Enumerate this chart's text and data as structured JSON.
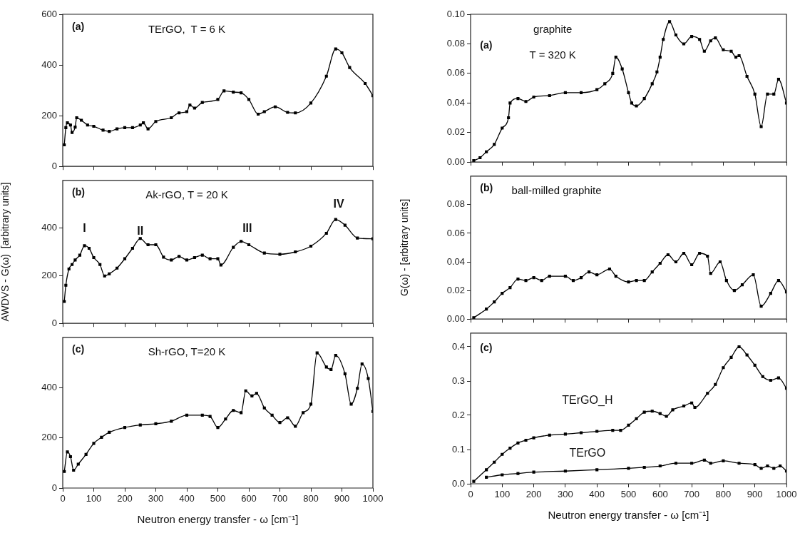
{
  "chart_data": [
    {
      "type": "line",
      "title": "TErGO,  T = 6 K",
      "annotations": [
        "(a)"
      ],
      "color": "#000000",
      "marker": "square",
      "tick_labels": "y",
      "xlim": [
        0,
        1000
      ],
      "xticks": [
        0,
        100,
        200,
        300,
        400,
        500,
        600,
        700,
        800,
        900,
        1000
      ],
      "ylim": [
        0,
        600
      ],
      "yticks": [
        0,
        200,
        400,
        600
      ],
      "x": [
        5,
        10,
        15,
        25,
        30,
        40,
        45,
        60,
        80,
        100,
        130,
        150,
        175,
        200,
        225,
        250,
        260,
        275,
        300,
        350,
        375,
        400,
        410,
        425,
        450,
        500,
        520,
        550,
        575,
        600,
        630,
        650,
        685,
        725,
        750,
        800,
        850,
        880,
        900,
        925,
        975,
        1000
      ],
      "values": [
        85,
        153,
        172,
        163,
        134,
        155,
        192,
        182,
        163,
        158,
        143,
        138,
        148,
        153,
        153,
        163,
        172,
        148,
        177,
        192,
        211,
        216,
        242,
        230,
        252,
        264,
        298,
        293,
        290,
        264,
        206,
        216,
        235,
        213,
        211,
        250,
        356,
        463,
        448,
        390,
        327,
        279
      ]
    },
    {
      "type": "line",
      "title": "Ak-rGO, T = 20 K",
      "ylabel": "AWDVS - G(ω)  [arbitrary units]",
      "annotations": [
        "(b)",
        "I",
        "II",
        "III",
        "IV"
      ],
      "color": "#000000",
      "marker": "square",
      "tick_labels": "y",
      "xlim": [
        0,
        1000
      ],
      "xticks": [
        0,
        100,
        200,
        300,
        400,
        500,
        600,
        700,
        800,
        900,
        1000
      ],
      "ylim": [
        0,
        600
      ],
      "yticks": [
        0,
        200,
        400
      ],
      "x": [
        5,
        10,
        20,
        30,
        40,
        55,
        70,
        85,
        100,
        120,
        135,
        150,
        175,
        200,
        225,
        250,
        275,
        300,
        325,
        350,
        375,
        400,
        425,
        450,
        475,
        500,
        510,
        550,
        575,
        600,
        650,
        700,
        750,
        800,
        850,
        880,
        910,
        950,
        1000
      ],
      "values": [
        92,
        160,
        228,
        247,
        266,
        286,
        326,
        315,
        276,
        247,
        199,
        208,
        232,
        271,
        315,
        356,
        330,
        330,
        278,
        266,
        281,
        266,
        276,
        286,
        271,
        271,
        245,
        319,
        344,
        330,
        295,
        290,
        300,
        324,
        378,
        436,
        412,
        358,
        355
      ]
    },
    {
      "type": "line",
      "title": "Sh-rGO, T=20 K",
      "xlabel": "Neutron energy transfer - ω [cm⁻¹]",
      "annotations": [
        "(c)"
      ],
      "color": "#000000",
      "marker": "square",
      "xlim": [
        0,
        1000
      ],
      "xticks": [
        0,
        100,
        200,
        300,
        400,
        500,
        600,
        700,
        800,
        900,
        1000
      ],
      "ylim": [
        0,
        600
      ],
      "yticks": [
        0,
        200,
        400
      ],
      "x": [
        5,
        15,
        25,
        35,
        50,
        75,
        100,
        125,
        150,
        200,
        250,
        300,
        350,
        400,
        450,
        475,
        500,
        525,
        550,
        575,
        590,
        610,
        625,
        650,
        675,
        700,
        725,
        750,
        775,
        800,
        820,
        850,
        865,
        880,
        910,
        930,
        950,
        965,
        985,
        1000
      ],
      "values": [
        66,
        144,
        125,
        71,
        95,
        134,
        178,
        202,
        222,
        241,
        251,
        256,
        266,
        290,
        290,
        285,
        241,
        275,
        309,
        300,
        387,
        367,
        377,
        319,
        290,
        261,
        280,
        246,
        300,
        334,
        538,
        482,
        472,
        528,
        455,
        334,
        397,
        494,
        436,
        305
      ]
    },
    {
      "type": "line",
      "title": "graphite",
      "subtitle": "T = 320 K",
      "annotations": [
        "(a)"
      ],
      "color": "#000000",
      "marker": "square",
      "tick_labels": "y",
      "xlim": [
        0,
        1000
      ],
      "xticks": [
        0,
        100,
        200,
        300,
        400,
        500,
        600,
        700,
        800,
        900,
        1000
      ],
      "ylim": [
        0,
        0.1
      ],
      "yticks": [
        {
          "value": 0,
          "label": "0.00"
        },
        {
          "value": 0.02,
          "label": "0.02"
        },
        {
          "value": 0.04,
          "label": "0.04"
        },
        {
          "value": 0.06,
          "label": "0.06"
        },
        {
          "value": 0.08,
          "label": "0.08"
        },
        {
          "value": 0.1,
          "label": "0.10"
        }
      ],
      "x": [
        10,
        30,
        50,
        75,
        100,
        120,
        125,
        150,
        175,
        200,
        250,
        300,
        350,
        400,
        425,
        450,
        460,
        480,
        500,
        510,
        525,
        550,
        575,
        590,
        600,
        610,
        630,
        650,
        675,
        700,
        725,
        740,
        760,
        775,
        800,
        825,
        840,
        850,
        875,
        900,
        920,
        940,
        960,
        975,
        1000
      ],
      "values": [
        0.001,
        0.003,
        0.007,
        0.012,
        0.023,
        0.03,
        0.04,
        0.043,
        0.041,
        0.044,
        0.045,
        0.047,
        0.047,
        0.049,
        0.053,
        0.06,
        0.071,
        0.063,
        0.047,
        0.04,
        0.038,
        0.043,
        0.053,
        0.061,
        0.071,
        0.083,
        0.095,
        0.086,
        0.08,
        0.085,
        0.083,
        0.075,
        0.082,
        0.084,
        0.076,
        0.075,
        0.071,
        0.072,
        0.058,
        0.046,
        0.024,
        0.046,
        0.046,
        0.056,
        0.04
      ]
    },
    {
      "type": "line",
      "title": "ball-milled graphite",
      "ylabel": "G(ω) - [arbitrary units]",
      "annotations": [
        "(b)"
      ],
      "color": "#000000",
      "marker": "square",
      "tick_labels": "y",
      "xlim": [
        0,
        1000
      ],
      "xticks": [
        0,
        100,
        200,
        300,
        400,
        500,
        600,
        700,
        800,
        900,
        1000
      ],
      "ylim": [
        0,
        0.1
      ],
      "yticks": [
        {
          "value": 0,
          "label": "0.00"
        },
        {
          "value": 0.02,
          "label": "0.02"
        },
        {
          "value": 0.04,
          "label": "0.04"
        },
        {
          "value": 0.06,
          "label": "0.06"
        },
        {
          "value": 0.08,
          "label": "0.08"
        }
      ],
      "x": [
        10,
        50,
        75,
        100,
        125,
        150,
        175,
        200,
        225,
        250,
        300,
        325,
        350,
        375,
        400,
        440,
        460,
        500,
        525,
        550,
        575,
        600,
        625,
        650,
        675,
        700,
        725,
        750,
        760,
        790,
        810,
        835,
        860,
        895,
        920,
        950,
        975,
        1000
      ],
      "values": [
        0.001,
        0.007,
        0.012,
        0.018,
        0.022,
        0.028,
        0.027,
        0.029,
        0.027,
        0.03,
        0.03,
        0.027,
        0.029,
        0.033,
        0.031,
        0.035,
        0.03,
        0.026,
        0.027,
        0.027,
        0.033,
        0.039,
        0.045,
        0.04,
        0.046,
        0.038,
        0.046,
        0.044,
        0.032,
        0.04,
        0.027,
        0.02,
        0.024,
        0.031,
        0.009,
        0.018,
        0.027,
        0.019
      ]
    },
    {
      "type": "line",
      "xlabel": "Neutron energy transfer - ω [cm⁻¹]",
      "annotations": [
        "(c)",
        "TErGO_H",
        "TErGO"
      ],
      "marker": "square",
      "xlim": [
        0,
        1000
      ],
      "xticks": [
        0,
        100,
        200,
        300,
        400,
        500,
        600,
        700,
        800,
        900,
        1000
      ],
      "ylim": [
        0,
        0.44
      ],
      "yticks": [
        {
          "value": 0,
          "label": "0.0"
        },
        {
          "value": 0.1,
          "label": "0.1"
        },
        {
          "value": 0.2,
          "label": "0.2"
        },
        {
          "value": 0.3,
          "label": "0.3"
        },
        {
          "value": 0.4,
          "label": "0.4"
        }
      ],
      "series": [
        {
          "color": "#000000",
          "x": [
            10,
            50,
            75,
            100,
            125,
            150,
            175,
            200,
            250,
            300,
            350,
            400,
            450,
            475,
            500,
            525,
            550,
            575,
            600,
            620,
            640,
            675,
            700,
            710,
            750,
            775,
            800,
            825,
            850,
            875,
            900,
            925,
            950,
            975,
            1000
          ],
          "values": [
            0.007,
            0.041,
            0.063,
            0.086,
            0.104,
            0.119,
            0.127,
            0.134,
            0.142,
            0.145,
            0.149,
            0.153,
            0.156,
            0.156,
            0.171,
            0.19,
            0.209,
            0.212,
            0.205,
            0.197,
            0.216,
            0.227,
            0.236,
            0.223,
            0.264,
            0.29,
            0.339,
            0.369,
            0.4,
            0.376,
            0.346,
            0.313,
            0.302,
            0.309,
            0.279
          ]
        },
        {
          "color": "#000000",
          "x": [
            50,
            100,
            150,
            200,
            300,
            400,
            500,
            550,
            600,
            650,
            700,
            740,
            760,
            800,
            850,
            900,
            920,
            940,
            960,
            980,
            1000
          ],
          "values": [
            0.019,
            0.026,
            0.03,
            0.034,
            0.037,
            0.041,
            0.045,
            0.048,
            0.052,
            0.06,
            0.06,
            0.069,
            0.06,
            0.067,
            0.06,
            0.056,
            0.045,
            0.052,
            0.045,
            0.052,
            0.037
          ]
        }
      ]
    }
  ]
}
